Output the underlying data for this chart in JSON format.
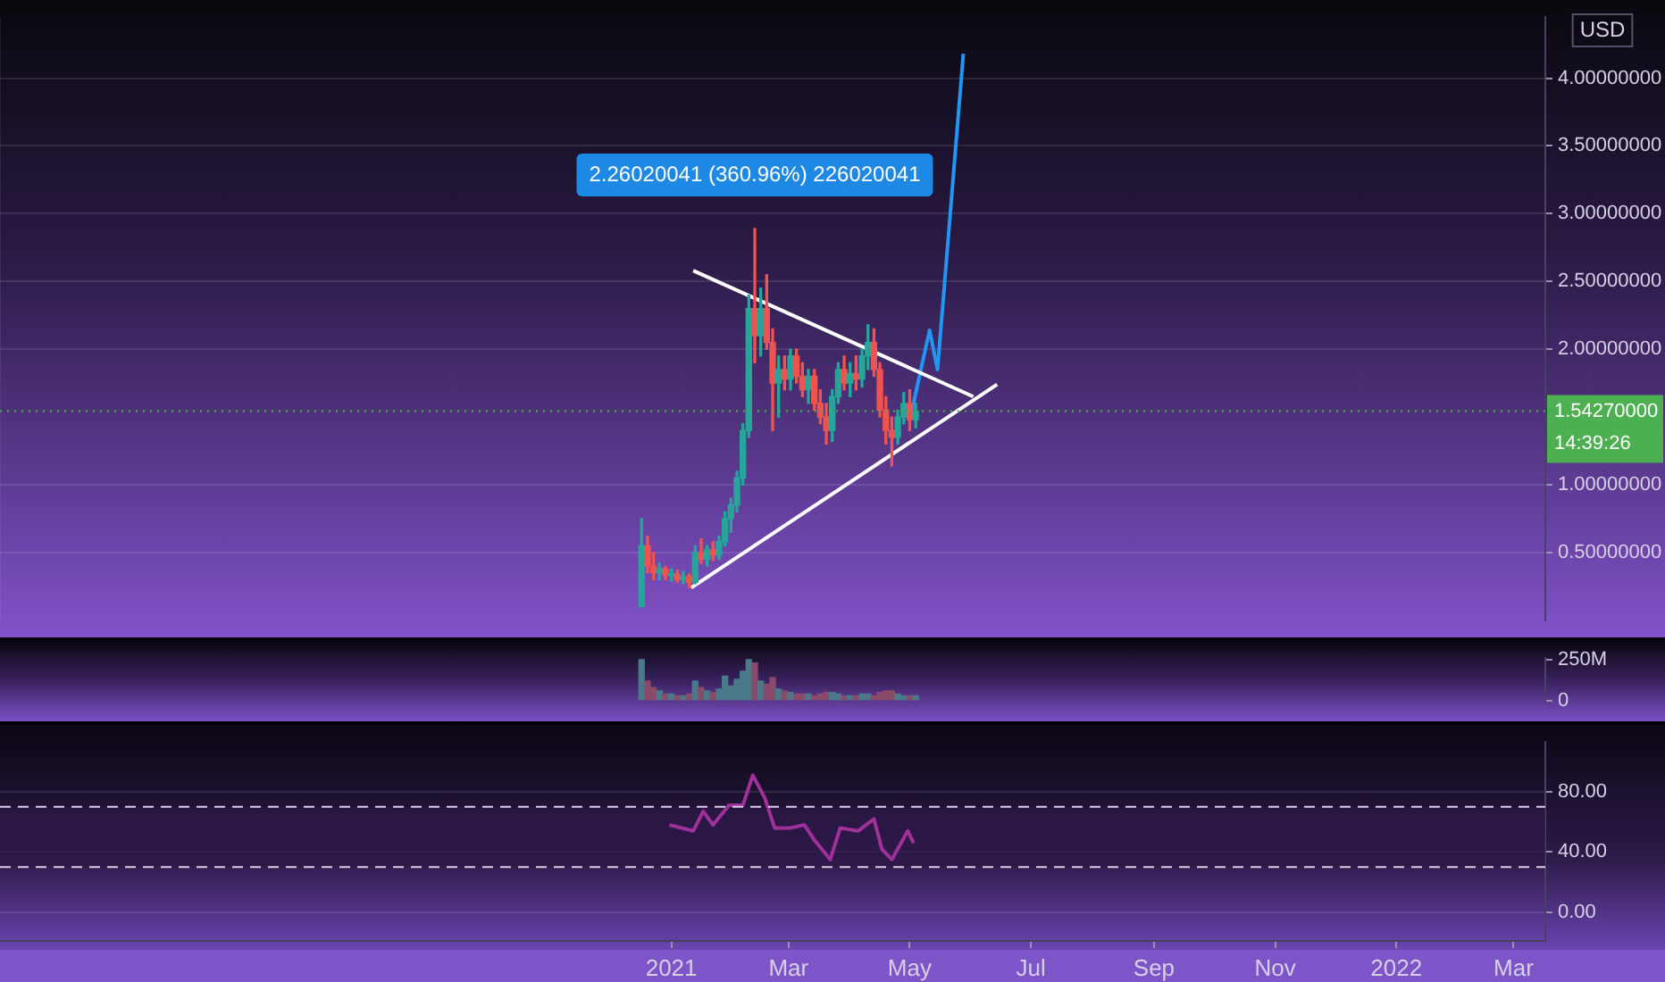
{
  "chart_data": [
    {
      "type": "candlestick",
      "xlim": [
        "2020-01-29",
        "2022-03-17"
      ],
      "ylim": [
        0,
        4.45
      ],
      "xticks": [
        {
          "value": "2021-01-01",
          "label": null
        },
        {
          "value": "2021-03-01",
          "label": null
        },
        {
          "value": "2021-05-01",
          "label": null
        },
        {
          "value": "2021-07-01",
          "label": null
        },
        {
          "value": "2021-09-01",
          "label": null
        },
        {
          "value": "2021-11-01",
          "label": null
        },
        {
          "value": "2022-01-01",
          "label": null
        },
        {
          "value": "2022-03-01",
          "label": null
        }
      ],
      "yticks": [
        {
          "value": 0.5,
          "label": "0.50000000"
        },
        {
          "value": 1,
          "label": "1.00000000"
        },
        {
          "value": 2,
          "label": "2.00000000"
        },
        {
          "value": 2.5,
          "label": "2.50000000"
        },
        {
          "value": 3,
          "label": "3.00000000"
        },
        {
          "value": 3.5,
          "label": "3.50000000"
        },
        {
          "value": 4,
          "label": "4.00000000"
        }
      ],
      "tick_labels": "y",
      "grid": true,
      "x": [
        "2020-12-17",
        "2020-12-20",
        "2020-12-23",
        "2020-12-26",
        "2020-12-29",
        "2021-01-01",
        "2021-01-04",
        "2021-01-07",
        "2021-01-10",
        "2021-01-13",
        "2021-01-16",
        "2021-01-19",
        "2021-01-22",
        "2021-01-25",
        "2021-01-28",
        "2021-01-31",
        "2021-02-03",
        "2021-02-06",
        "2021-02-09",
        "2021-02-12",
        "2021-02-15",
        "2021-02-18",
        "2021-02-21",
        "2021-02-24",
        "2021-02-27",
        "2021-03-02",
        "2021-03-05",
        "2021-03-08",
        "2021-03-11",
        "2021-03-14",
        "2021-03-17",
        "2021-03-20",
        "2021-03-23",
        "2021-03-26",
        "2021-03-29",
        "2021-04-01",
        "2021-04-04",
        "2021-04-07",
        "2021-04-10",
        "2021-04-13",
        "2021-04-16",
        "2021-04-19",
        "2021-04-22",
        "2021-04-25",
        "2021-04-28",
        "2021-05-01",
        "2021-05-04"
      ],
      "ohlc": [
        [
          0.1,
          0.75,
          0.1,
          0.55
        ],
        [
          0.55,
          0.62,
          0.35,
          0.4
        ],
        [
          0.4,
          0.5,
          0.3,
          0.35
        ],
        [
          0.35,
          0.42,
          0.3,
          0.38
        ],
        [
          0.38,
          0.4,
          0.3,
          0.33
        ],
        [
          0.33,
          0.38,
          0.29,
          0.34
        ],
        [
          0.34,
          0.37,
          0.28,
          0.3
        ],
        [
          0.3,
          0.36,
          0.27,
          0.32
        ],
        [
          0.32,
          0.34,
          0.24,
          0.28
        ],
        [
          0.28,
          0.55,
          0.27,
          0.5
        ],
        [
          0.5,
          0.6,
          0.42,
          0.45
        ],
        [
          0.45,
          0.55,
          0.4,
          0.52
        ],
        [
          0.52,
          0.58,
          0.44,
          0.48
        ],
        [
          0.48,
          0.62,
          0.45,
          0.58
        ],
        [
          0.58,
          0.8,
          0.55,
          0.75
        ],
        [
          0.75,
          0.9,
          0.65,
          0.85
        ],
        [
          0.85,
          1.1,
          0.8,
          1.05
        ],
        [
          1.05,
          1.45,
          1.0,
          1.4
        ],
        [
          1.4,
          2.4,
          1.35,
          2.3
        ],
        [
          2.3,
          2.89,
          1.9,
          2.1
        ],
        [
          2.1,
          2.45,
          1.95,
          2.3
        ],
        [
          2.3,
          2.55,
          2.0,
          2.05
        ],
        [
          2.05,
          2.15,
          1.4,
          1.75
        ],
        [
          1.75,
          1.95,
          1.5,
          1.85
        ],
        [
          1.85,
          1.95,
          1.7,
          1.78
        ],
        [
          1.78,
          2.0,
          1.7,
          1.95
        ],
        [
          1.95,
          2.0,
          1.75,
          1.8
        ],
        [
          1.8,
          1.9,
          1.65,
          1.7
        ],
        [
          1.7,
          1.85,
          1.6,
          1.8
        ],
        [
          1.8,
          1.85,
          1.55,
          1.6
        ],
        [
          1.6,
          1.7,
          1.45,
          1.5
        ],
        [
          1.5,
          1.6,
          1.3,
          1.4
        ],
        [
          1.4,
          1.7,
          1.32,
          1.65
        ],
        [
          1.65,
          1.9,
          1.6,
          1.85
        ],
        [
          1.85,
          1.95,
          1.7,
          1.75
        ],
        [
          1.75,
          1.9,
          1.65,
          1.82
        ],
        [
          1.82,
          1.95,
          1.7,
          1.78
        ],
        [
          1.78,
          2.0,
          1.72,
          1.95
        ],
        [
          1.95,
          2.18,
          1.85,
          2.05
        ],
        [
          2.05,
          2.15,
          1.8,
          1.85
        ],
        [
          1.85,
          1.9,
          1.5,
          1.55
        ],
        [
          1.55,
          1.65,
          1.3,
          1.4
        ],
        [
          1.4,
          1.5,
          1.14,
          1.35
        ],
        [
          1.35,
          1.55,
          1.3,
          1.5
        ],
        [
          1.5,
          1.68,
          1.45,
          1.6
        ],
        [
          1.6,
          1.7,
          1.4,
          1.48
        ],
        [
          1.48,
          1.6,
          1.42,
          1.5427
        ]
      ],
      "series": [
        {
          "type": "line",
          "color": "#ffffff",
          "x": [
            "2021-01-12",
            "2021-06-02"
          ],
          "values": [
            2.58,
            1.65
          ]
        },
        {
          "type": "line",
          "color": "#ffffff",
          "x": [
            "2021-01-11",
            "2021-06-14"
          ],
          "values": [
            0.24,
            1.74
          ]
        },
        {
          "type": "line",
          "color": "#2196f3",
          "x": [
            "2021-05-02",
            "2021-05-11",
            "2021-05-15",
            "2021-05-28"
          ],
          "values": [
            1.54,
            2.14,
            1.85,
            4.18
          ]
        }
      ],
      "marker": "none",
      "ref_lines": [
        {
          "axis": "y",
          "value": 1.5427,
          "label": "1.54270000",
          "color": "#4caf50",
          "line_style": "dotted"
        }
      ],
      "annotations": [
        "USD",
        "14:39:26",
        "2.26020041 (360.96%) 226020041"
      ]
    },
    {
      "type": "bar",
      "xlim": [
        "2020-01-29",
        "2022-03-17"
      ],
      "ylim": [
        0,
        260000000
      ],
      "xticks": [
        {
          "value": "2021-01-01",
          "label": null
        },
        {
          "value": "2021-03-01",
          "label": null
        },
        {
          "value": "2021-05-01",
          "label": null
        },
        {
          "value": "2021-07-01",
          "label": null
        },
        {
          "value": "2021-09-01",
          "label": null
        },
        {
          "value": "2021-11-01",
          "label": null
        },
        {
          "value": "2022-01-01",
          "label": null
        },
        {
          "value": "2022-03-01",
          "label": null
        }
      ],
      "yticks": [
        0,
        {
          "value": 250000000,
          "label": "250M"
        }
      ],
      "tick_labels": "y",
      "x": [
        "2020-12-17",
        "2020-12-20",
        "2020-12-23",
        "2020-12-26",
        "2020-12-29",
        "2021-01-01",
        "2021-01-04",
        "2021-01-07",
        "2021-01-10",
        "2021-01-13",
        "2021-01-16",
        "2021-01-19",
        "2021-01-22",
        "2021-01-25",
        "2021-01-28",
        "2021-01-31",
        "2021-02-03",
        "2021-02-06",
        "2021-02-09",
        "2021-02-12",
        "2021-02-15",
        "2021-02-18",
        "2021-02-21",
        "2021-02-24",
        "2021-02-27",
        "2021-03-02",
        "2021-03-05",
        "2021-03-08",
        "2021-03-11",
        "2021-03-14",
        "2021-03-17",
        "2021-03-20",
        "2021-03-23",
        "2021-03-26",
        "2021-03-29",
        "2021-04-01",
        "2021-04-04",
        "2021-04-07",
        "2021-04-10",
        "2021-04-13",
        "2021-04-16",
        "2021-04-19",
        "2021-04-22",
        "2021-04-25",
        "2021-04-28",
        "2021-05-01",
        "2021-05-04"
      ],
      "values": [
        250000000,
        120000000,
        80000000,
        60000000,
        40000000,
        40000000,
        30000000,
        30000000,
        40000000,
        120000000,
        80000000,
        60000000,
        50000000,
        70000000,
        150000000,
        90000000,
        130000000,
        180000000,
        250000000,
        230000000,
        120000000,
        100000000,
        140000000,
        70000000,
        60000000,
        50000000,
        40000000,
        40000000,
        40000000,
        30000000,
        40000000,
        50000000,
        50000000,
        40000000,
        30000000,
        30000000,
        30000000,
        40000000,
        40000000,
        30000000,
        50000000,
        60000000,
        60000000,
        40000000,
        30000000,
        30000000,
        30000000
      ],
      "colors": [
        "#4a7a8a",
        "#8a4a6a",
        "#8a4a6a",
        "#4a7a8a",
        "#8a4a6a",
        "#4a7a8a",
        "#8a4a6a",
        "#4a7a8a",
        "#8a4a6a",
        "#4a7a8a",
        "#8a4a6a",
        "#4a7a8a",
        "#8a4a6a",
        "#4a7a8a",
        "#4a7a8a",
        "#4a7a8a",
        "#4a7a8a",
        "#4a7a8a",
        "#4a7a8a",
        "#8a4a6a",
        "#4a7a8a",
        "#8a4a6a",
        "#8a4a6a",
        "#4a7a8a",
        "#8a4a6a",
        "#4a7a8a",
        "#8a4a6a",
        "#8a4a6a",
        "#4a7a8a",
        "#8a4a6a",
        "#8a4a6a",
        "#8a4a6a",
        "#4a7a8a",
        "#4a7a8a",
        "#8a4a6a",
        "#4a7a8a",
        "#8a4a6a",
        "#4a7a8a",
        "#4a7a8a",
        "#8a4a6a",
        "#8a4a6a",
        "#8a4a6a",
        "#8a4a6a",
        "#4a7a8a",
        "#4a7a8a",
        "#8a4a6a",
        "#4a7a8a"
      ]
    },
    {
      "type": "line",
      "xlim": [
        "2020-01-29",
        "2022-03-17"
      ],
      "ylim": [
        -19,
        113
      ],
      "xticks": [
        {
          "value": "2021-01-01",
          "label": "2021"
        },
        {
          "value": "2021-03-01",
          "label": "Mar"
        },
        {
          "value": "2021-05-01",
          "label": "May"
        },
        {
          "value": "2021-07-01",
          "label": "Jul"
        },
        {
          "value": "2021-09-01",
          "label": "Sep"
        },
        {
          "value": "2021-11-01",
          "label": "Nov"
        },
        {
          "value": "2022-01-01",
          "label": "2022"
        },
        {
          "value": "2022-03-01",
          "label": "Mar"
        }
      ],
      "yticks": [
        {
          "value": 0,
          "label": "0.00"
        },
        {
          "value": 40,
          "label": "40.00"
        },
        {
          "value": 80,
          "label": "80.00"
        }
      ],
      "grid": "y",
      "marker": "none",
      "series": [
        {
          "color": "#a0309a",
          "x": [
            "2020-12-31",
            "2021-01-12",
            "2021-01-17",
            "2021-01-22",
            "2021-01-30",
            "2021-02-06",
            "2021-02-11",
            "2021-02-17",
            "2021-02-22",
            "2021-03-02",
            "2021-03-09",
            "2021-03-14",
            "2021-03-22",
            "2021-03-27",
            "2021-04-05",
            "2021-04-13",
            "2021-04-17",
            "2021-04-22",
            "2021-04-30",
            "2021-05-03"
          ],
          "values": [
            58,
            54,
            67,
            58,
            71,
            71,
            91,
            76,
            56,
            56,
            58,
            48,
            35,
            56,
            54,
            62,
            42,
            35,
            54,
            46
          ]
        }
      ],
      "ref_lines": [
        {
          "axis": "y",
          "value": 70,
          "color": "#d8d0e8",
          "line_style": "dashed"
        },
        {
          "axis": "y",
          "value": 30,
          "color": "#d8d0e8",
          "line_style": "dashed"
        }
      ],
      "bands": [
        {
          "axis": "y",
          "from": 30,
          "to": 70,
          "color": "#2e1848"
        }
      ]
    }
  ]
}
